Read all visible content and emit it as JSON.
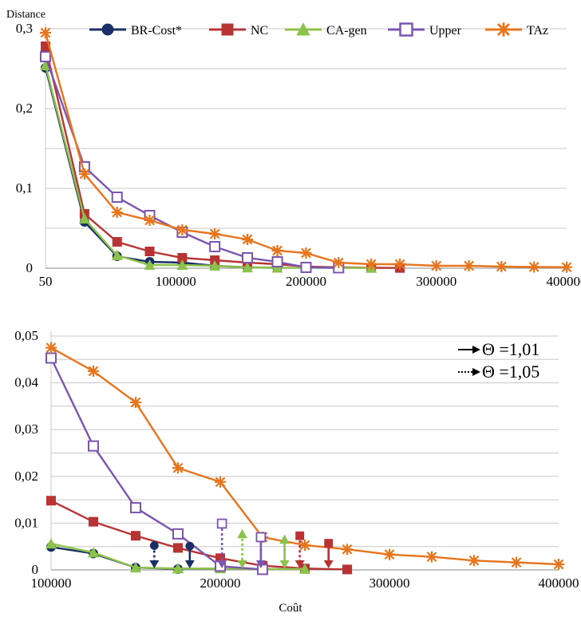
{
  "colors": {
    "BR-Cost*": "#1a2f66",
    "NC": "#b83333",
    "CA-gen": "#8cc24a",
    "Upper": "#7b55b0",
    "TAz": "#e8741c",
    "grid": "#c8c8c8",
    "axis": "#888888"
  },
  "chart_data": [
    {
      "type": "line",
      "ylabel": "Distance",
      "xlabel": "",
      "grid": true,
      "legend": "top",
      "xlim": [
        50,
        400000
      ],
      "ylim": [
        0,
        0.3
      ],
      "x_ticks": [
        "50",
        "100000",
        "200000",
        "300000",
        "400000"
      ],
      "x_tick_values": [
        0,
        100000,
        200000,
        300000,
        400000
      ],
      "y_ticks": [
        "0,3",
        "0,2",
        "0,1",
        "0"
      ],
      "y_tick_values": [
        0.3,
        0.2,
        0.1,
        0
      ],
      "series": [
        {
          "name": "BR-Cost*",
          "marker": "circle",
          "points": [
            [
              50,
              0.251
            ],
            [
              30000,
              0.058
            ],
            [
              55000,
              0.015
            ],
            [
              80000,
              0.008
            ],
            [
              105000,
              0.007
            ],
            [
              130000,
              0.003
            ],
            [
              155000,
              0.001
            ],
            [
              178000,
              0.0005
            ]
          ]
        },
        {
          "name": "NC",
          "marker": "square",
          "points": [
            [
              50,
              0.278
            ],
            [
              30000,
              0.068
            ],
            [
              55000,
              0.033
            ],
            [
              80000,
              0.021
            ],
            [
              105000,
              0.013
            ],
            [
              130000,
              0.01
            ],
            [
              155000,
              0.007
            ],
            [
              178000,
              0.005
            ],
            [
              200000,
              0.002
            ],
            [
              225000,
              0.001
            ],
            [
              250000,
              0.0005
            ],
            [
              272000,
              0.0003
            ]
          ]
        },
        {
          "name": "CA-gen",
          "marker": "triangle",
          "points": [
            [
              50,
              0.254
            ],
            [
              30000,
              0.062
            ],
            [
              55000,
              0.016
            ],
            [
              80000,
              0.004
            ],
            [
              105000,
              0.004
            ],
            [
              130000,
              0.003
            ],
            [
              155000,
              0.0008
            ],
            [
              178000,
              0.0005
            ],
            [
              250000,
              0.0003
            ]
          ]
        },
        {
          "name": "Upper",
          "marker": "hollow-square",
          "points": [
            [
              50,
              0.265
            ],
            [
              30000,
              0.127
            ],
            [
              55000,
              0.089
            ],
            [
              80000,
              0.066
            ],
            [
              105000,
              0.045
            ],
            [
              130000,
              0.027
            ],
            [
              155000,
              0.013
            ],
            [
              178000,
              0.008
            ],
            [
              200000,
              0.001
            ],
            [
              225000,
              0.0005
            ]
          ]
        },
        {
          "name": "TAz",
          "marker": "star",
          "points": [
            [
              50,
              0.295
            ],
            [
              30000,
              0.118
            ],
            [
              55000,
              0.07
            ],
            [
              80000,
              0.06
            ],
            [
              105000,
              0.048
            ],
            [
              130000,
              0.043
            ],
            [
              155000,
              0.036
            ],
            [
              178000,
              0.022
            ],
            [
              200000,
              0.019
            ],
            [
              225000,
              0.007
            ],
            [
              250000,
              0.005
            ],
            [
              272000,
              0.005
            ],
            [
              300000,
              0.003
            ],
            [
              325000,
              0.003
            ],
            [
              350000,
              0.002
            ],
            [
              375000,
              0.0015
            ],
            [
              400000,
              0.0013
            ]
          ]
        }
      ]
    },
    {
      "type": "line",
      "ylabel": "",
      "xlabel": "Coût",
      "grid": true,
      "legend": "top-right",
      "xlim": [
        100000,
        400000
      ],
      "ylim": [
        0,
        0.05
      ],
      "x_ticks": [
        "100000",
        "200000",
        "300000",
        "400000"
      ],
      "x_tick_values": [
        100000,
        200000,
        300000,
        400000
      ],
      "y_ticks": [
        "0,05",
        "0,04",
        "0,03",
        "0,02",
        "0,01",
        "0"
      ],
      "y_tick_values": [
        0.05,
        0.04,
        0.03,
        0.02,
        0.01,
        0
      ],
      "series": [
        {
          "name": "BR-Cost*",
          "marker": "circle",
          "points": [
            [
              100000,
              0.0049
            ],
            [
              125000,
              0.0035
            ],
            [
              150000,
              0.0005
            ],
            [
              175000,
              0.0002
            ]
          ]
        },
        {
          "name": "NC",
          "marker": "square",
          "points": [
            [
              100000,
              0.0148
            ],
            [
              125000,
              0.0103
            ],
            [
              150000,
              0.0073
            ],
            [
              175000,
              0.0047
            ],
            [
              200000,
              0.0025
            ],
            [
              225000,
              0.0009
            ],
            [
              250000,
              0.0003
            ],
            [
              275000,
              0.0001
            ]
          ]
        },
        {
          "name": "CA-gen",
          "marker": "triangle",
          "points": [
            [
              100000,
              0.0056
            ],
            [
              125000,
              0.0037
            ],
            [
              150000,
              0.0005
            ],
            [
              175000,
              0.0003
            ],
            [
              200000,
              0.0003
            ],
            [
              225000,
              0.0002
            ],
            [
              250000,
              0.0002
            ]
          ]
        },
        {
          "name": "Upper",
          "marker": "hollow-square",
          "points": [
            [
              100000,
              0.0453
            ],
            [
              125000,
              0.0265
            ],
            [
              150000,
              0.0133
            ],
            [
              175000,
              0.0077
            ],
            [
              200000,
              0.0008
            ],
            [
              225000,
              0.0001
            ]
          ]
        },
        {
          "name": "TAz",
          "marker": "star",
          "points": [
            [
              100000,
              0.0475
            ],
            [
              125000,
              0.0425
            ],
            [
              150000,
              0.0358
            ],
            [
              175000,
              0.0218
            ],
            [
              200000,
              0.0188
            ],
            [
              225000,
              0.007
            ],
            [
              250000,
              0.0053
            ],
            [
              275000,
              0.0044
            ],
            [
              300000,
              0.0033
            ],
            [
              325000,
              0.0028
            ],
            [
              350000,
              0.002
            ],
            [
              375000,
              0.0016
            ],
            [
              400000,
              0.0012
            ]
          ]
        }
      ],
      "threshold_markers": {
        "legend": [
          {
            "style": "solid",
            "label": "Θ =1,01"
          },
          {
            "style": "dotted",
            "label": "Θ =1,05"
          }
        ],
        "items": [
          {
            "series": "BR-Cost*",
            "style": "dotted",
            "x": 161000,
            "y_top": 0.0052,
            "marker": "circle"
          },
          {
            "series": "BR-Cost*",
            "style": "solid",
            "x": 182000,
            "y_top": 0.0051,
            "marker": "circle"
          },
          {
            "series": "Upper",
            "style": "dotted",
            "x": 201000,
            "y_top": 0.0099,
            "marker": "hollow-square"
          },
          {
            "series": "CA-gen",
            "style": "dotted",
            "x": 213000,
            "y_top": 0.0077,
            "marker": "triangle"
          },
          {
            "series": "Upper",
            "style": "solid",
            "x": 224000,
            "y_top": 0.007,
            "marker": "hollow-square"
          },
          {
            "series": "CA-gen",
            "style": "solid",
            "x": 238000,
            "y_top": 0.0065,
            "marker": "triangle"
          },
          {
            "series": "NC",
            "style": "dotted",
            "x": 247000,
            "y_top": 0.0073,
            "marker": "square"
          },
          {
            "series": "NC",
            "style": "solid",
            "x": 264000,
            "y_top": 0.0057,
            "marker": "square"
          }
        ]
      }
    }
  ]
}
